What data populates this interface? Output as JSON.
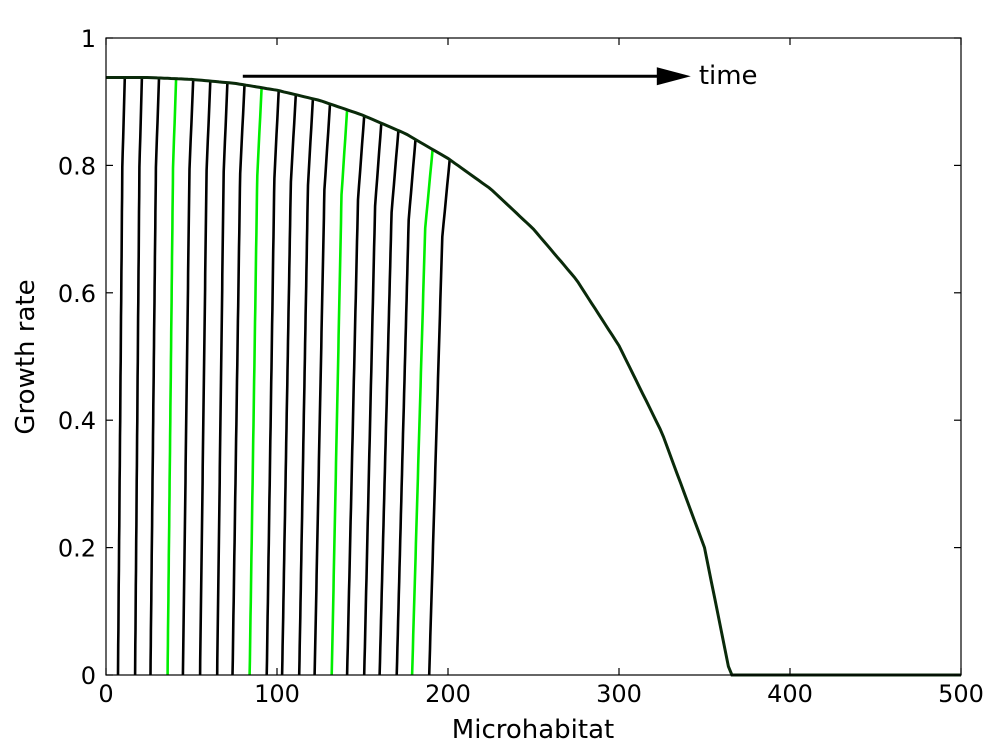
{
  "chart_data": {
    "type": "line",
    "title": "",
    "xlabel": "Microhabitat",
    "ylabel": "Growth rate",
    "xlim": [
      0,
      500
    ],
    "ylim": [
      0,
      1
    ],
    "x_ticks": [
      "0",
      "100",
      "200",
      "300",
      "400",
      "500"
    ],
    "y_ticks": [
      "0",
      "0.2",
      "0.4",
      "0.6",
      "0.8",
      "1"
    ],
    "grid": false,
    "colors": {
      "default_line": "#000000",
      "highlight_line": "#00ee00",
      "envelope": "#0a2a0a"
    },
    "envelope": {
      "x": [
        0,
        25,
        50,
        75,
        100,
        125,
        150,
        175,
        200,
        225,
        250,
        275,
        300,
        325,
        350,
        365,
        370,
        400,
        450,
        500
      ],
      "y": [
        0.938,
        0.938,
        0.935,
        0.929,
        0.918,
        0.902,
        0.879,
        0.85,
        0.811,
        0.763,
        0.7,
        0.621,
        0.517,
        0.381,
        0.2,
        0.0,
        0.0,
        0.0,
        0.0,
        0.0
      ]
    },
    "fronts": {
      "description_free_note": "",
      "x_bottom": [
        7,
        17,
        26,
        36,
        45,
        55,
        65,
        74,
        84,
        94,
        103,
        113,
        122,
        132,
        141,
        151,
        160,
        170,
        179,
        189
      ],
      "x_top": [
        11,
        21,
        31,
        41,
        51,
        61,
        71,
        81,
        91,
        101,
        111,
        121,
        131,
        141,
        151,
        161,
        171,
        181,
        191,
        201
      ],
      "highlighted_index": [
        3,
        8,
        13,
        18
      ]
    },
    "annotations": [
      {
        "text": "time",
        "arrow_from": [
          80,
          0.94
        ],
        "arrow_to": [
          342,
          0.94
        ]
      }
    ]
  }
}
